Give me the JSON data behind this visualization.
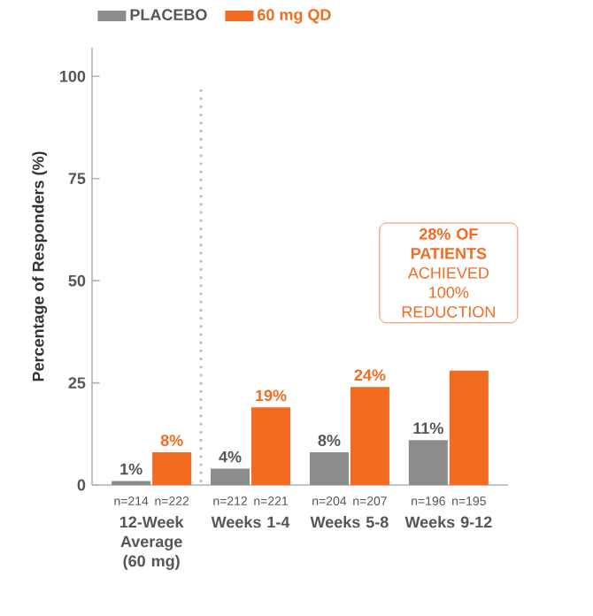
{
  "chart_data": {
    "type": "bar",
    "ylabel": "Percentage of Responders (%)",
    "categories": [
      "12-Week Average (60 mg)",
      "Weeks 1-4",
      "Weeks 5-8",
      "Weeks 9-12"
    ],
    "series": [
      {
        "name": "PLACEBO",
        "color": "#8c8c8c",
        "values": [
          1,
          4,
          8,
          11
        ],
        "value_labels": [
          "1%",
          "4%",
          "8%",
          "11%"
        ]
      },
      {
        "name": "60 mg QD",
        "color": "#f26b21",
        "values": [
          8,
          19,
          24,
          28
        ],
        "value_labels": [
          "8%",
          "19%",
          "24%",
          null
        ]
      }
    ],
    "ylim": [
      0,
      107
    ],
    "yticks": [
      0,
      25,
      50,
      75,
      100
    ],
    "legend": "top left",
    "annotations": [
      "**28% OF PATIENTS** ACHIEVED 100% REDUCTION",
      "n=214",
      "n=222",
      "n=212",
      "n=221",
      "n=204",
      "n=207",
      "n=196",
      "n=195"
    ]
  }
}
